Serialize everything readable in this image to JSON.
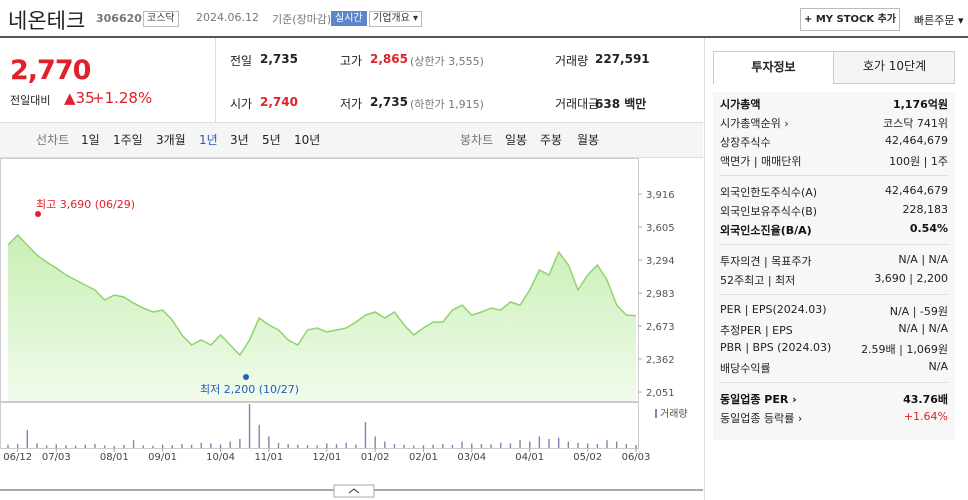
{
  "header": {
    "name": "네온테크",
    "code": "306620",
    "market": "코스닥",
    "date": "2024.06.12",
    "basis": "기준(장마감)",
    "realtime": "실시간",
    "overview": "기업개요",
    "mystock": "MY STOCK 추가",
    "quick_order": "빠른주문"
  },
  "quote": {
    "price": "2,770",
    "change_label": "전일대비",
    "change": "35",
    "change_pct": "+1.28%",
    "items": [
      {
        "label": "전일",
        "value": "2,735"
      },
      {
        "label": "고가",
        "value": "2,865",
        "note": "(상한가 3,555)"
      },
      {
        "label": "거래량",
        "value": "227,591"
      },
      {
        "label": "시가",
        "value": "2,740"
      },
      {
        "label": "저가",
        "value": "2,735",
        "note": "(하한가 1,915)"
      },
      {
        "label": "거래대금",
        "value": "638 백만"
      }
    ]
  },
  "line_tabs": {
    "label": "선차트",
    "items": [
      "1일",
      "1주일",
      "3개월",
      "1년",
      "3년",
      "5년",
      "10년"
    ]
  },
  "candle_tabs": {
    "label": "봉차트",
    "items": [
      "일봉",
      "주봉",
      "월봉"
    ]
  },
  "chart_data": {
    "type": "line",
    "color": "#8fd46c",
    "categories": [
      null,
      "06/12",
      null,
      null,
      null,
      "07/03",
      null,
      null,
      null,
      null,
      null,
      "08/01",
      null,
      null,
      null,
      null,
      "09/01",
      null,
      null,
      null,
      null,
      null,
      "10/04",
      null,
      null,
      null,
      null,
      "11/01",
      null,
      null,
      null,
      null,
      null,
      "12/01",
      null,
      null,
      null,
      null,
      "01/02",
      null,
      null,
      null,
      null,
      "02/01",
      null,
      null,
      null,
      null,
      "03/04",
      null,
      null,
      null,
      null,
      null,
      "04/01",
      null,
      null,
      null,
      null,
      null,
      "05/02",
      null,
      null,
      null,
      null,
      "06/03"
    ],
    "values": [
      3436,
      3530,
      3436,
      3341,
      3275,
      3219,
      3153,
      3106,
      3059,
      3012,
      2918,
      2965,
      2946,
      2889,
      2842,
      2805,
      2823,
      2729,
      2588,
      2494,
      2541,
      2494,
      2588,
      2494,
      2400,
      2541,
      2748,
      2682,
      2635,
      2541,
      2494,
      2635,
      2654,
      2616,
      2635,
      2654,
      2710,
      2776,
      2805,
      2748,
      2805,
      2682,
      2588,
      2654,
      2710,
      2710,
      2823,
      2870,
      2776,
      2805,
      2842,
      2823,
      2899,
      2870,
      3012,
      3200,
      3153,
      3370,
      3247,
      3012,
      3153,
      3247,
      3106,
      2870,
      2776,
      2770
    ],
    "ylim": [
      1976,
      4048
    ],
    "yticks": [
      {
        "value": 3916,
        "label": "3,916"
      },
      {
        "value": 3605,
        "label": "3,605"
      },
      {
        "value": 3294,
        "label": "3,294"
      },
      {
        "value": 2983,
        "label": "2,983"
      },
      {
        "value": 2673,
        "label": "2,673"
      },
      {
        "value": 2362,
        "label": "2,362"
      },
      {
        "value": 2051,
        "label": "2,051"
      }
    ],
    "annotations": {
      "high": "최고 3,690 (06/29)",
      "low": "최저 2,200 (10/27)"
    },
    "volume": {
      "name": "거래량",
      "color": "#8a7fb0",
      "values": [
        250000,
        300000,
        1400000,
        350000,
        200000,
        280000,
        220000,
        180000,
        250000,
        300000,
        200000,
        150000,
        240000,
        600000,
        200000,
        180000,
        260000,
        220000,
        300000,
        250000,
        400000,
        350000,
        280000,
        500000,
        700000,
        3400000,
        1800000,
        900000,
        400000,
        300000,
        250000,
        220000,
        200000,
        350000,
        300000,
        400000,
        260000,
        2000000,
        900000,
        500000,
        300000,
        250000,
        200000,
        220000,
        260000,
        300000,
        240000,
        500000,
        350000,
        300000,
        280000,
        400000,
        350000,
        600000,
        500000,
        900000,
        700000,
        800000,
        500000,
        400000,
        350000,
        300000,
        600000,
        500000,
        300000,
        227591
      ]
    }
  },
  "side_panel": {
    "tabs": [
      "투자정보",
      "호가 10단계"
    ],
    "groups": [
      [
        {
          "label": "시가총액",
          "value": "1,176억원"
        },
        {
          "label": "시가총액순위 ›",
          "value": "코스닥 741위"
        },
        {
          "label": "상장주식수",
          "value": "42,464,679"
        },
        {
          "label": "액면가 | 매매단위",
          "value": "100원 | 1주"
        }
      ],
      [
        {
          "label": "외국인한도주식수(A)",
          "value": "42,464,679"
        },
        {
          "label": "외국인보유주식수(B)",
          "value": "228,183"
        },
        {
          "label": "외국인소진율(B/A)",
          "value": "0.54%"
        }
      ],
      [
        {
          "label": "투자의견 | 목표주가",
          "value": "N/A | N/A"
        },
        {
          "label": "52주최고 | 최저",
          "value": "3,690 | 2,200"
        }
      ],
      [
        {
          "label": "PER | EPS(2024.03)",
          "value": "N/A | -59원"
        },
        {
          "label": "추정PER | EPS",
          "value": "N/A | N/A"
        },
        {
          "label": "PBR | BPS (2024.03)",
          "value": "2.59배 | 1,069원"
        },
        {
          "label": "배당수익률",
          "value": "N/A"
        }
      ],
      [
        {
          "label": "동일업종 PER ›",
          "value": "43.76배"
        },
        {
          "label": "동일업종 등락률 ›",
          "value": "+1.64%"
        }
      ]
    ]
  }
}
